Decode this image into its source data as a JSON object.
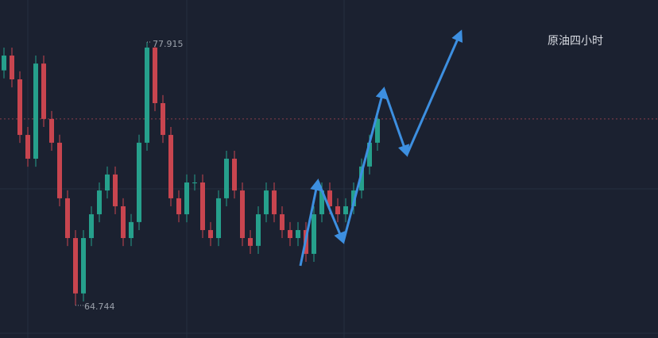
{
  "chart_data": {
    "type": "candlestick",
    "title": "原油四小时",
    "ylim": [
      63.11,
      80.02
    ],
    "up_color": "#26a08c",
    "down_color": "#c8454f",
    "max_price": 77.915,
    "min_price": 64.744,
    "price_line": 74.07,
    "open": [
      76.5,
      77.24,
      76.05,
      73.27,
      72.08,
      76.84,
      74.07,
      72.88,
      70.1,
      68.11,
      65.34,
      68.11,
      69.3,
      70.49,
      71.29,
      69.7,
      68.11,
      68.91,
      72.88,
      77.64,
      74.86,
      73.27,
      70.1,
      69.3,
      70.89,
      70.89,
      68.51,
      68.11,
      70.1,
      72.08,
      70.49,
      68.11,
      67.72,
      69.3,
      70.49,
      69.3,
      68.51,
      68.11,
      68.51,
      67.32,
      69.3,
      70.49,
      69.7,
      69.3,
      69.7,
      70.49,
      71.69,
      72.88
    ],
    "high": [
      77.64,
      77.64,
      76.45,
      73.67,
      77.24,
      77.24,
      74.47,
      73.28,
      70.5,
      68.51,
      68.51,
      69.7,
      70.89,
      71.69,
      71.69,
      70.1,
      69.31,
      73.28,
      77.915,
      77.7,
      75.26,
      73.67,
      70.5,
      71.29,
      71.29,
      71.29,
      68.91,
      70.5,
      72.48,
      72.48,
      70.89,
      68.51,
      69.7,
      70.89,
      70.89,
      69.7,
      68.91,
      68.91,
      68.91,
      69.7,
      70.89,
      70.89,
      70.1,
      70.1,
      70.89,
      72.09,
      73.28,
      74.47
    ],
    "low": [
      76.1,
      75.65,
      72.87,
      71.68,
      71.68,
      73.67,
      72.48,
      69.7,
      67.71,
      64.744,
      64.94,
      67.71,
      68.9,
      70.09,
      69.3,
      67.71,
      67.71,
      68.51,
      72.48,
      74.46,
      72.87,
      69.7,
      68.9,
      68.9,
      70.49,
      68.11,
      67.71,
      67.71,
      69.7,
      70.09,
      67.71,
      67.32,
      67.32,
      68.9,
      68.9,
      68.11,
      67.71,
      67.71,
      66.92,
      66.92,
      68.9,
      69.3,
      68.9,
      68.9,
      69.3,
      70.09,
      71.29,
      72.48
    ],
    "close": [
      77.24,
      76.05,
      73.27,
      72.08,
      76.84,
      74.07,
      72.88,
      70.1,
      68.11,
      65.34,
      68.11,
      69.3,
      70.49,
      71.29,
      69.7,
      68.11,
      68.91,
      72.88,
      77.64,
      74.86,
      73.27,
      70.1,
      69.3,
      70.89,
      70.89,
      68.51,
      68.11,
      70.1,
      72.08,
      70.49,
      68.11,
      67.72,
      69.3,
      70.49,
      69.3,
      68.51,
      68.11,
      68.51,
      67.32,
      69.3,
      70.49,
      69.7,
      69.3,
      69.7,
      70.49,
      71.69,
      72.88,
      74.07
    ]
  }
}
